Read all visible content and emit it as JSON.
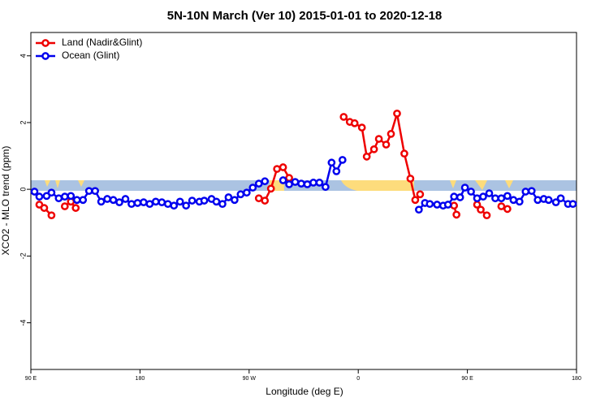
{
  "chart_data": {
    "type": "line",
    "title": "5N-10N March (Ver 10)   2015-01-01 to 2020-12-18",
    "x_label": "Longitude (deg E)",
    "y_label": "XCO2 - MLO trend (ppm)",
    "xlim": [
      90,
      540
    ],
    "ylim": [
      -5.4,
      4.7
    ],
    "xticks": [
      {
        "value": 90,
        "label": "90 E"
      },
      180,
      {
        "value": 270,
        "label": "90 W"
      },
      {
        "value": 360,
        "label": "0"
      },
      {
        "value": 450,
        "label": "90 E"
      },
      {
        "value": 540,
        "label": "180"
      }
    ],
    "yticks": [
      -4,
      -2,
      0,
      2,
      4
    ],
    "legend": "top-left",
    "series": [
      {
        "name": "Land (Nadir&Glint)",
        "color": "#ee0000",
        "x": [
          97,
          101,
          107,
          110,
          118,
          123,
          127,
          200,
          278,
          283,
          288,
          293,
          298,
          303,
          330,
          348,
          353,
          357,
          363,
          367,
          373,
          377,
          383,
          387,
          392,
          398,
          403,
          407,
          411,
          420,
          439,
          441,
          445,
          458,
          461,
          466,
          470,
          478,
          483
        ],
        "values": [
          -0.46,
          -0.56,
          -0.78,
          null,
          -0.51,
          -0.37,
          -0.56,
          null,
          -0.27,
          -0.34,
          0.02,
          0.61,
          0.66,
          0.34,
          null,
          2.17,
          2.02,
          1.98,
          1.85,
          0.98,
          1.2,
          1.51,
          1.34,
          1.66,
          2.27,
          1.07,
          0.32,
          -0.32,
          -0.15,
          null,
          -0.49,
          -0.76,
          null,
          -0.46,
          -0.61,
          -0.78,
          null,
          -0.51,
          -0.59
        ]
      },
      {
        "name": "Ocean (Glint)",
        "color": "#0000ee",
        "x": [
          93,
          97,
          103,
          107,
          113,
          118,
          123,
          128,
          133,
          138,
          143,
          148,
          153,
          158,
          163,
          168,
          173,
          178,
          183,
          188,
          193,
          198,
          203,
          208,
          213,
          218,
          223,
          229,
          233,
          239,
          243,
          248,
          253,
          258,
          263,
          268,
          273,
          278,
          283,
          290,
          298,
          303,
          308,
          313,
          318,
          323,
          328,
          333,
          338,
          342,
          347,
          380,
          410,
          415,
          419,
          425,
          430,
          434,
          439,
          444,
          448,
          453,
          458,
          463,
          468,
          473,
          478,
          483,
          488,
          493,
          498,
          503,
          508,
          513,
          517,
          523,
          527,
          533,
          537
        ],
        "values": [
          -0.07,
          -0.22,
          -0.2,
          -0.1,
          -0.27,
          -0.22,
          -0.2,
          -0.32,
          -0.32,
          -0.05,
          -0.05,
          -0.37,
          -0.29,
          -0.32,
          -0.39,
          -0.29,
          -0.44,
          -0.41,
          -0.39,
          -0.44,
          -0.37,
          -0.39,
          -0.44,
          -0.49,
          -0.37,
          -0.49,
          -0.34,
          -0.37,
          -0.34,
          -0.29,
          -0.37,
          -0.44,
          -0.24,
          -0.32,
          -0.15,
          -0.1,
          0.05,
          0.17,
          0.24,
          null,
          0.27,
          0.15,
          0.22,
          0.17,
          0.15,
          0.2,
          0.2,
          0.07,
          0.8,
          0.54,
          0.88,
          null,
          -0.61,
          -0.41,
          -0.44,
          -0.46,
          -0.49,
          -0.46,
          -0.22,
          -0.24,
          0.05,
          -0.07,
          -0.27,
          -0.22,
          -0.12,
          -0.27,
          -0.27,
          -0.2,
          -0.32,
          -0.37,
          -0.07,
          -0.05,
          -0.32,
          -0.29,
          -0.32,
          -0.39,
          -0.27,
          -0.44,
          -0.44
        ]
      }
    ]
  }
}
